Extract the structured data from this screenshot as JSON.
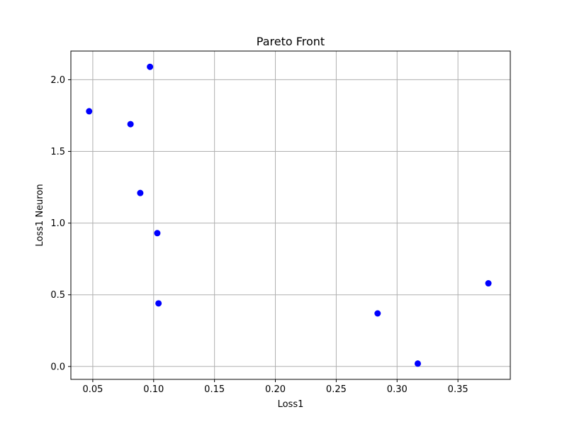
{
  "chart_data": {
    "type": "scatter",
    "title": "Pareto Front",
    "xlabel": "Loss1",
    "ylabel": "Loss1 Neuron",
    "xlim": [
      0.032,
      0.393
    ],
    "ylim": [
      -0.09,
      2.2
    ],
    "xticks": [
      0.05,
      0.1,
      0.15,
      0.2,
      0.25,
      0.3,
      0.35
    ],
    "xtick_labels": [
      "0.05",
      "0.10",
      "0.15",
      "0.20",
      "0.25",
      "0.30",
      "0.35"
    ],
    "yticks": [
      0.0,
      0.5,
      1.0,
      1.5,
      2.0
    ],
    "ytick_labels": [
      "0.0",
      "0.5",
      "1.0",
      "1.5",
      "2.0"
    ],
    "grid": true,
    "marker_color": "#0000ff",
    "series": [
      {
        "points": [
          {
            "x": 0.047,
            "y": 1.78
          },
          {
            "x": 0.081,
            "y": 1.69
          },
          {
            "x": 0.097,
            "y": 2.09
          },
          {
            "x": 0.089,
            "y": 1.21
          },
          {
            "x": 0.103,
            "y": 0.93
          },
          {
            "x": 0.104,
            "y": 0.44
          },
          {
            "x": 0.284,
            "y": 0.37
          },
          {
            "x": 0.317,
            "y": 0.02
          },
          {
            "x": 0.375,
            "y": 0.58
          }
        ]
      }
    ]
  }
}
